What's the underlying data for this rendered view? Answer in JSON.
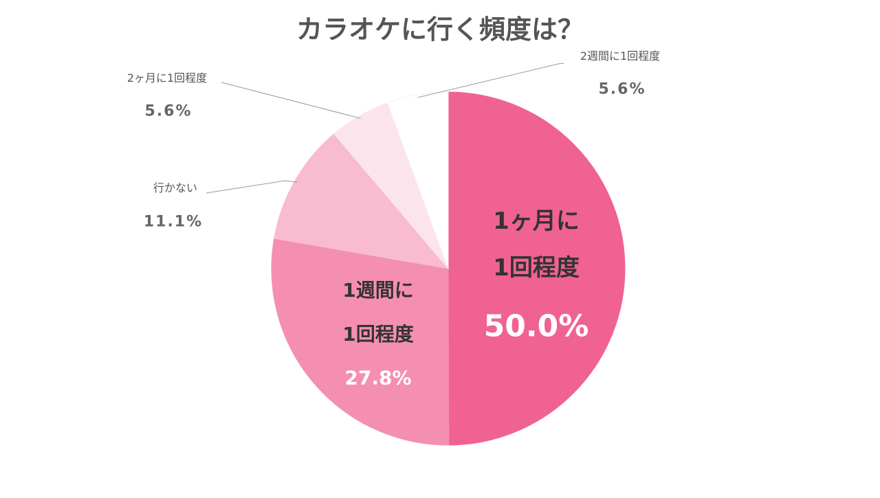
{
  "chart_data": {
    "type": "pie",
    "title": "カラオケに行く頻度は？",
    "categories": [
      "1ヶ月に\n1回程度",
      "1週間に\n1回程度",
      "行かない",
      "2ヶ月に1回程度",
      "2週間に1回程度"
    ],
    "values": [
      50.0,
      27.8,
      11.1,
      5.6,
      5.6
    ],
    "value_labels": [
      "50.0%",
      "27.8%",
      "11.1%",
      "5.6%",
      "5.6%"
    ],
    "colors": [
      "#f06292",
      "#f48fb1",
      "#f8bbd0",
      "#fce4ec",
      "#ffffff"
    ]
  }
}
